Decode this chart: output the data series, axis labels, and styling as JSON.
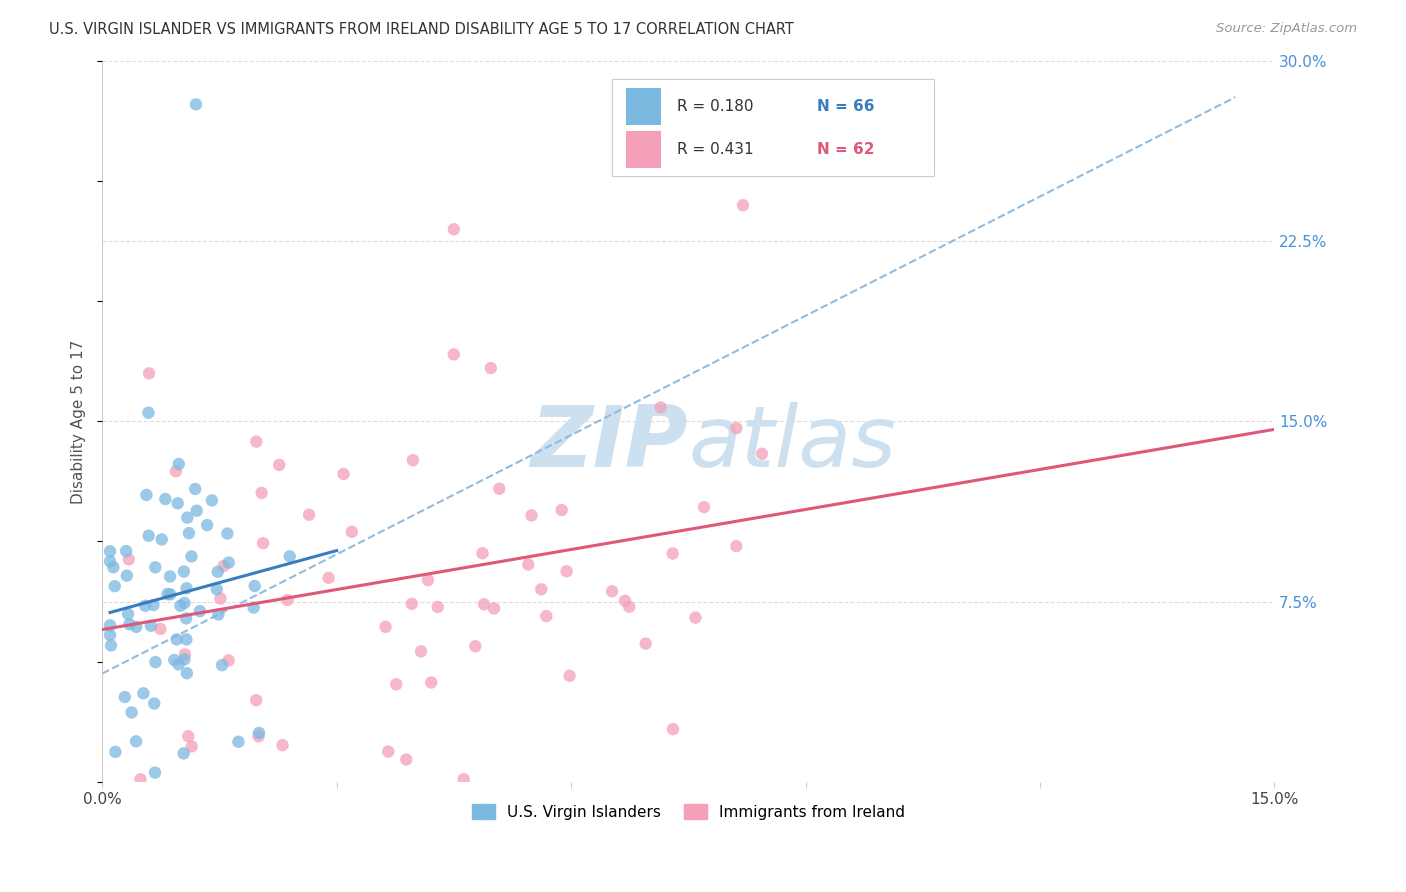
{
  "title": "U.S. VIRGIN ISLANDER VS IMMIGRANTS FROM IRELAND DISABILITY AGE 5 TO 17 CORRELATION CHART",
  "source": "Source: ZipAtlas.com",
  "ylabel": "Disability Age 5 to 17",
  "x_min": 0.0,
  "x_max": 0.15,
  "y_min": 0.0,
  "y_max": 0.3,
  "y_ticks_right": [
    0.0,
    0.075,
    0.15,
    0.225,
    0.3
  ],
  "y_tick_labels_right": [
    "",
    "7.5%",
    "15.0%",
    "22.5%",
    "30.0%"
  ],
  "legend_label1": "U.S. Virgin Islanders",
  "legend_label2": "Immigrants from Ireland",
  "color_blue": "#7ab8e0",
  "color_pink": "#f4a0b8",
  "color_blue_line": "#3a7dbf",
  "color_pink_line": "#e05878",
  "color_dashed": "#90bce0",
  "background_color": "#ffffff",
  "grid_color": "#dddddd",
  "watermark_color": "#cce0f0"
}
